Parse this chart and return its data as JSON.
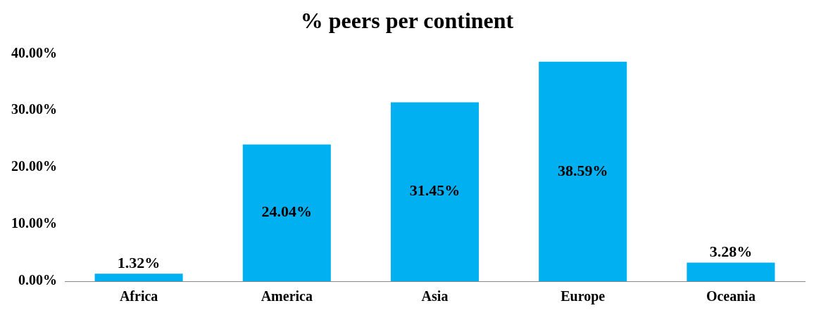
{
  "chart_data": {
    "type": "bar",
    "title": "% peers per continent",
    "categories": [
      "Africa",
      "America",
      "Asia",
      "Europe",
      "Oceania"
    ],
    "values": [
      1.32,
      24.04,
      31.45,
      38.59,
      3.28
    ],
    "value_labels": [
      "1.32%",
      "24.04%",
      "31.45%",
      "38.59%",
      "3.28%"
    ],
    "color": "#00b0f0",
    "ylim": [
      0,
      40
    ],
    "yticks": [
      {
        "value": 0,
        "label": "0.00%"
      },
      {
        "value": 10,
        "label": "10.00%"
      },
      {
        "value": 20,
        "label": "20.00%"
      },
      {
        "value": 30,
        "label": "30.00%"
      },
      {
        "value": 40,
        "label": "40.00%"
      }
    ],
    "grid": false,
    "legend": false
  }
}
